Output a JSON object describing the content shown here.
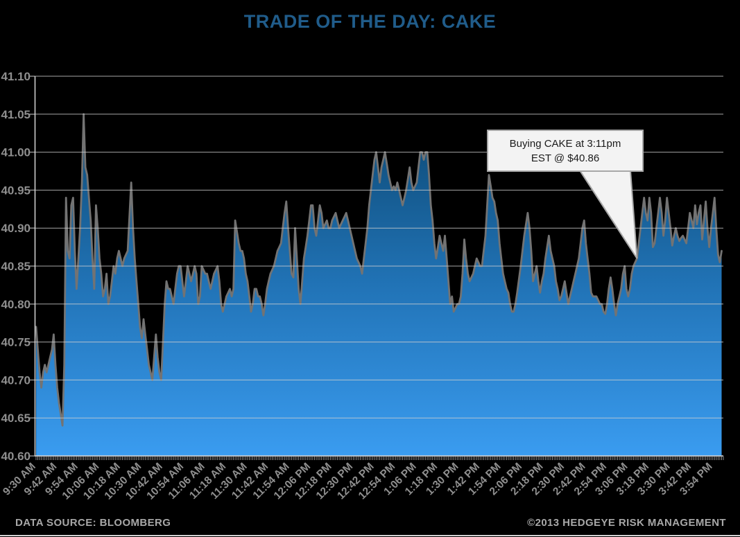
{
  "title": "TRADE OF THE DAY: CAKE",
  "annotation": {
    "line1": "Buying CAKE at 3:11pm",
    "line2": "EST @ $40.86"
  },
  "footer": {
    "left": "DATA SOURCE: BLOOMBERG",
    "right": "©2013 HEDGEYE RISK MANAGEMENT"
  },
  "colors": {
    "background": "#000000",
    "title_blue": "#205C8A",
    "axis_label_gray": "#8F8F8F",
    "gridline": "#D0D0D0",
    "axis_line": "#D9D9D9",
    "tick_gray": "#8C8C8C",
    "price_line": "#737373",
    "area_gradient_top": "#0E3A66",
    "area_gradient_upper": "#10507F",
    "area_gradient_mid": "#2173B6",
    "area_gradient_bottom": "#3A9CF0",
    "callout_fill": "#F3F3F3",
    "callout_border": "#A8A8A8",
    "footer_gray": "#A8A8A8"
  },
  "chart_data": {
    "type": "area",
    "title": "TRADE OF THE DAY: CAKE",
    "x_unit": "minutes since 9:30 AM EST",
    "x_total_minutes": 390,
    "x_tick_interval_minutes": 12,
    "x_tick_labels": [
      "9:30 AM",
      "9:42 AM",
      "9:54 AM",
      "10:06 AM",
      "10:18 AM",
      "10:30 AM",
      "10:42 AM",
      "10:54 AM",
      "11:06 AM",
      "11:18 AM",
      "11:30 AM",
      "11:42 AM",
      "11:54 AM",
      "12:06 PM",
      "12:18 PM",
      "12:30 PM",
      "12:42 PM",
      "12:54 PM",
      "1:06 PM",
      "1:18 PM",
      "1:30 PM",
      "1:42 PM",
      "1:54 PM",
      "2:06 PM",
      "2:18 PM",
      "2:30 PM",
      "2:42 PM",
      "2:54 PM",
      "3:06 PM",
      "3:18 PM",
      "3:30 PM",
      "3:42 PM",
      "3:54 PM"
    ],
    "ylim": [
      40.6,
      41.1
    ],
    "y_tick_step": 0.05,
    "y_tick_labels": [
      "41.10",
      "41.05",
      "41.00",
      "40.95",
      "40.90",
      "40.85",
      "40.80",
      "40.75",
      "40.70",
      "40.65",
      "40.60"
    ],
    "grid": true,
    "legend": "none",
    "annotation_point": {
      "label": "Buying CAKE at 3:11pm EST @ $40.86",
      "minute": 341,
      "price": 40.86
    },
    "points": [
      [
        0,
        40.77
      ],
      [
        1,
        40.74
      ],
      [
        2,
        40.71
      ],
      [
        3,
        40.69
      ],
      [
        4,
        40.71
      ],
      [
        5,
        40.72
      ],
      [
        6,
        40.71
      ],
      [
        7,
        40.72
      ],
      [
        8,
        40.73
      ],
      [
        9,
        40.74
      ],
      [
        10,
        40.76
      ],
      [
        11,
        40.72
      ],
      [
        12,
        40.69
      ],
      [
        13,
        40.67
      ],
      [
        14,
        40.655
      ],
      [
        15,
        40.64
      ],
      [
        16,
        40.72
      ],
      [
        17,
        40.94
      ],
      [
        18,
        40.87
      ],
      [
        19,
        40.86
      ],
      [
        20,
        40.93
      ],
      [
        21,
        40.94
      ],
      [
        22,
        40.87
      ],
      [
        23,
        40.82
      ],
      [
        24,
        40.86
      ],
      [
        25,
        40.9
      ],
      [
        26,
        40.96
      ],
      [
        27,
        41.05
      ],
      [
        28,
        40.98
      ],
      [
        29,
        40.97
      ],
      [
        30,
        40.94
      ],
      [
        31,
        40.91
      ],
      [
        32,
        40.86
      ],
      [
        33,
        40.82
      ],
      [
        34,
        40.93
      ],
      [
        35,
        40.9
      ],
      [
        36,
        40.86
      ],
      [
        37,
        40.84
      ],
      [
        38,
        40.81
      ],
      [
        39,
        40.82
      ],
      [
        40,
        40.84
      ],
      [
        41,
        40.8
      ],
      [
        42,
        40.81
      ],
      [
        43,
        40.83
      ],
      [
        44,
        40.85
      ],
      [
        45,
        40.84
      ],
      [
        46,
        40.86
      ],
      [
        47,
        40.87
      ],
      [
        48,
        40.86
      ],
      [
        49,
        40.85
      ],
      [
        50,
        40.86
      ],
      [
        52,
        40.87
      ],
      [
        54,
        40.96
      ],
      [
        55,
        40.9
      ],
      [
        56,
        40.86
      ],
      [
        57,
        40.83
      ],
      [
        58,
        40.8
      ],
      [
        59,
        40.77
      ],
      [
        60,
        40.755
      ],
      [
        61,
        40.78
      ],
      [
        62,
        40.76
      ],
      [
        63,
        40.74
      ],
      [
        64,
        40.72
      ],
      [
        65,
        40.71
      ],
      [
        66,
        40.7
      ],
      [
        67,
        40.73
      ],
      [
        68,
        40.76
      ],
      [
        69,
        40.73
      ],
      [
        70,
        40.71
      ],
      [
        71,
        40.7
      ],
      [
        72,
        40.75
      ],
      [
        73,
        40.8
      ],
      [
        74,
        40.83
      ],
      [
        75,
        40.82
      ],
      [
        76,
        40.82
      ],
      [
        77,
        40.81
      ],
      [
        78,
        40.8
      ],
      [
        79,
        40.82
      ],
      [
        80,
        40.84
      ],
      [
        81,
        40.85
      ],
      [
        82,
        40.85
      ],
      [
        83,
        40.83
      ],
      [
        84,
        40.81
      ],
      [
        85,
        40.83
      ],
      [
        86,
        40.85
      ],
      [
        87,
        40.84
      ],
      [
        88,
        40.83
      ],
      [
        89,
        40.84
      ],
      [
        90,
        40.85
      ],
      [
        91,
        40.84
      ],
      [
        92,
        40.8
      ],
      [
        93,
        40.81
      ],
      [
        94,
        40.85
      ],
      [
        95,
        40.845
      ],
      [
        96,
        40.84
      ],
      [
        97,
        40.84
      ],
      [
        98,
        40.83
      ],
      [
        99,
        40.82
      ],
      [
        100,
        40.83
      ],
      [
        101,
        40.84
      ],
      [
        102,
        40.845
      ],
      [
        103,
        40.85
      ],
      [
        104,
        40.83
      ],
      [
        105,
        40.8
      ],
      [
        106,
        40.79
      ],
      [
        107,
        40.8
      ],
      [
        108,
        40.81
      ],
      [
        109,
        40.815
      ],
      [
        110,
        40.82
      ],
      [
        111,
        40.81
      ],
      [
        112,
        40.82
      ],
      [
        113,
        40.91
      ],
      [
        114,
        40.895
      ],
      [
        115,
        40.88
      ],
      [
        116,
        40.87
      ],
      [
        117,
        40.87
      ],
      [
        118,
        40.86
      ],
      [
        119,
        40.84
      ],
      [
        120,
        40.83
      ],
      [
        121,
        40.81
      ],
      [
        122,
        40.79
      ],
      [
        123,
        40.8
      ],
      [
        124,
        40.82
      ],
      [
        125,
        40.82
      ],
      [
        126,
        40.81
      ],
      [
        127,
        40.81
      ],
      [
        128,
        40.8
      ],
      [
        129,
        40.785
      ],
      [
        130,
        40.8
      ],
      [
        131,
        40.82
      ],
      [
        132,
        40.83
      ],
      [
        133,
        40.84
      ],
      [
        134,
        40.845
      ],
      [
        135,
        40.85
      ],
      [
        136,
        40.86
      ],
      [
        137,
        40.87
      ],
      [
        138,
        40.875
      ],
      [
        139,
        40.88
      ],
      [
        140,
        40.9
      ],
      [
        141,
        40.92
      ],
      [
        142,
        40.935
      ],
      [
        143,
        40.9
      ],
      [
        144,
        40.87
      ],
      [
        145,
        40.84
      ],
      [
        146,
        40.835
      ],
      [
        147,
        40.9
      ],
      [
        148,
        40.86
      ],
      [
        149,
        40.82
      ],
      [
        150,
        40.8
      ],
      [
        151,
        40.83
      ],
      [
        152,
        40.86
      ],
      [
        153,
        40.875
      ],
      [
        154,
        40.89
      ],
      [
        155,
        40.91
      ],
      [
        156,
        40.93
      ],
      [
        157,
        40.93
      ],
      [
        158,
        40.9
      ],
      [
        159,
        40.89
      ],
      [
        160,
        40.91
      ],
      [
        161,
        40.93
      ],
      [
        162,
        40.92
      ],
      [
        163,
        40.9
      ],
      [
        164,
        40.905
      ],
      [
        165,
        40.91
      ],
      [
        166,
        40.9
      ],
      [
        167,
        40.9
      ],
      [
        168,
        40.91
      ],
      [
        169,
        40.915
      ],
      [
        170,
        40.92
      ],
      [
        171,
        40.91
      ],
      [
        172,
        40.9
      ],
      [
        173,
        40.905
      ],
      [
        174,
        40.91
      ],
      [
        175,
        40.915
      ],
      [
        176,
        40.92
      ],
      [
        177,
        40.91
      ],
      [
        178,
        40.9
      ],
      [
        180,
        40.88
      ],
      [
        182,
        40.86
      ],
      [
        184,
        40.85
      ],
      [
        185,
        40.84
      ],
      [
        186,
        40.86
      ],
      [
        187,
        40.88
      ],
      [
        188,
        40.9
      ],
      [
        189,
        40.93
      ],
      [
        190,
        40.95
      ],
      [
        191,
        40.97
      ],
      [
        192,
        40.99
      ],
      [
        193,
        41.0
      ],
      [
        194,
        40.98
      ],
      [
        195,
        40.96
      ],
      [
        196,
        40.98
      ],
      [
        197,
        40.99
      ],
      [
        198,
        41.0
      ],
      [
        199,
        40.985
      ],
      [
        200,
        40.97
      ],
      [
        201,
        40.96
      ],
      [
        202,
        40.95
      ],
      [
        203,
        40.955
      ],
      [
        204,
        40.95
      ],
      [
        205,
        40.96
      ],
      [
        206,
        40.95
      ],
      [
        207,
        40.94
      ],
      [
        208,
        40.93
      ],
      [
        209,
        40.94
      ],
      [
        210,
        40.95
      ],
      [
        211,
        40.965
      ],
      [
        212,
        40.98
      ],
      [
        213,
        40.96
      ],
      [
        214,
        40.95
      ],
      [
        215,
        40.955
      ],
      [
        216,
        40.96
      ],
      [
        217,
        40.98
      ],
      [
        218,
        41.0
      ],
      [
        219,
        41.0
      ],
      [
        220,
        40.99
      ],
      [
        221,
        41.0
      ],
      [
        222,
        41.0
      ],
      [
        223,
        40.97
      ],
      [
        224,
        40.93
      ],
      [
        225,
        40.91
      ],
      [
        226,
        40.88
      ],
      [
        227,
        40.86
      ],
      [
        228,
        40.875
      ],
      [
        229,
        40.89
      ],
      [
        230,
        40.88
      ],
      [
        231,
        40.87
      ],
      [
        232,
        40.89
      ],
      [
        233,
        40.86
      ],
      [
        234,
        40.83
      ],
      [
        235,
        40.8
      ],
      [
        236,
        40.81
      ],
      [
        237,
        40.79
      ],
      [
        238,
        40.795
      ],
      [
        239,
        40.8
      ],
      [
        240,
        40.8
      ],
      [
        241,
        40.81
      ],
      [
        242,
        40.84
      ],
      [
        243,
        40.885
      ],
      [
        244,
        40.86
      ],
      [
        245,
        40.84
      ],
      [
        246,
        40.83
      ],
      [
        247,
        40.835
      ],
      [
        248,
        40.84
      ],
      [
        249,
        40.85
      ],
      [
        250,
        40.86
      ],
      [
        251,
        40.855
      ],
      [
        252,
        40.85
      ],
      [
        253,
        40.85
      ],
      [
        254,
        40.87
      ],
      [
        255,
        40.89
      ],
      [
        256,
        40.93
      ],
      [
        257,
        40.97
      ],
      [
        258,
        40.955
      ],
      [
        259,
        40.94
      ],
      [
        260,
        40.935
      ],
      [
        261,
        40.92
      ],
      [
        262,
        40.91
      ],
      [
        263,
        40.88
      ],
      [
        264,
        40.86
      ],
      [
        265,
        40.84
      ],
      [
        266,
        40.83
      ],
      [
        267,
        40.82
      ],
      [
        268,
        40.815
      ],
      [
        269,
        40.8
      ],
      [
        270,
        40.79
      ],
      [
        271,
        40.79
      ],
      [
        272,
        40.8
      ],
      [
        273,
        40.815
      ],
      [
        275,
        40.85
      ],
      [
        277,
        40.89
      ],
      [
        279,
        40.92
      ],
      [
        280,
        40.9
      ],
      [
        281,
        40.87
      ],
      [
        282,
        40.83
      ],
      [
        283,
        40.84
      ],
      [
        284,
        40.85
      ],
      [
        285,
        40.83
      ],
      [
        286,
        40.815
      ],
      [
        287,
        40.83
      ],
      [
        288,
        40.84
      ],
      [
        289,
        40.86
      ],
      [
        290,
        40.875
      ],
      [
        291,
        40.89
      ],
      [
        292,
        40.87
      ],
      [
        293,
        40.86
      ],
      [
        294,
        40.85
      ],
      [
        295,
        40.83
      ],
      [
        296,
        40.82
      ],
      [
        297,
        40.805
      ],
      [
        298,
        40.81
      ],
      [
        299,
        40.82
      ],
      [
        300,
        40.83
      ],
      [
        301,
        40.815
      ],
      [
        302,
        40.8
      ],
      [
        303,
        40.81
      ],
      [
        304,
        40.82
      ],
      [
        305,
        40.83
      ],
      [
        306,
        40.84
      ],
      [
        307,
        40.85
      ],
      [
        308,
        40.86
      ],
      [
        309,
        40.88
      ],
      [
        310,
        40.9
      ],
      [
        311,
        40.91
      ],
      [
        312,
        40.88
      ],
      [
        313,
        40.86
      ],
      [
        314,
        40.84
      ],
      [
        315,
        40.815
      ],
      [
        316,
        40.81
      ],
      [
        317,
        40.81
      ],
      [
        318,
        40.81
      ],
      [
        319,
        40.805
      ],
      [
        320,
        40.8
      ],
      [
        321,
        40.8
      ],
      [
        322,
        40.79
      ],
      [
        323,
        40.787
      ],
      [
        324,
        40.8
      ],
      [
        325,
        40.82
      ],
      [
        326,
        40.835
      ],
      [
        327,
        40.82
      ],
      [
        328,
        40.8
      ],
      [
        329,
        40.785
      ],
      [
        330,
        40.8
      ],
      [
        331,
        40.81
      ],
      [
        332,
        40.82
      ],
      [
        333,
        40.84
      ],
      [
        334,
        40.85
      ],
      [
        335,
        40.82
      ],
      [
        336,
        40.81
      ],
      [
        337,
        40.82
      ],
      [
        338,
        40.84
      ],
      [
        339,
        40.85
      ],
      [
        340,
        40.855
      ],
      [
        341,
        40.86
      ],
      [
        342,
        40.88
      ],
      [
        343,
        40.9
      ],
      [
        344,
        40.92
      ],
      [
        345,
        40.94
      ],
      [
        346,
        40.92
      ],
      [
        347,
        40.91
      ],
      [
        348,
        40.94
      ],
      [
        349,
        40.92
      ],
      [
        350,
        40.875
      ],
      [
        351,
        40.88
      ],
      [
        352,
        40.9
      ],
      [
        353,
        40.92
      ],
      [
        354,
        40.94
      ],
      [
        355,
        40.92
      ],
      [
        356,
        40.89
      ],
      [
        357,
        40.91
      ],
      [
        358,
        40.94
      ],
      [
        359,
        40.92
      ],
      [
        360,
        40.9
      ],
      [
        361,
        40.877
      ],
      [
        362,
        40.89
      ],
      [
        363,
        40.9
      ],
      [
        364,
        40.89
      ],
      [
        365,
        40.883
      ],
      [
        366,
        40.887
      ],
      [
        367,
        40.89
      ],
      [
        368,
        40.885
      ],
      [
        369,
        40.88
      ],
      [
        370,
        40.9
      ],
      [
        371,
        40.92
      ],
      [
        372,
        40.91
      ],
      [
        373,
        40.9
      ],
      [
        374,
        40.93
      ],
      [
        375,
        40.905
      ],
      [
        376,
        40.92
      ],
      [
        377,
        40.93
      ],
      [
        378,
        40.885
      ],
      [
        379,
        40.91
      ],
      [
        380,
        40.935
      ],
      [
        381,
        40.9
      ],
      [
        382,
        40.875
      ],
      [
        383,
        40.9
      ],
      [
        384,
        40.92
      ],
      [
        385,
        40.94
      ],
      [
        386,
        40.9
      ],
      [
        387,
        40.865
      ],
      [
        388,
        40.855
      ],
      [
        389,
        40.87
      ]
    ]
  }
}
